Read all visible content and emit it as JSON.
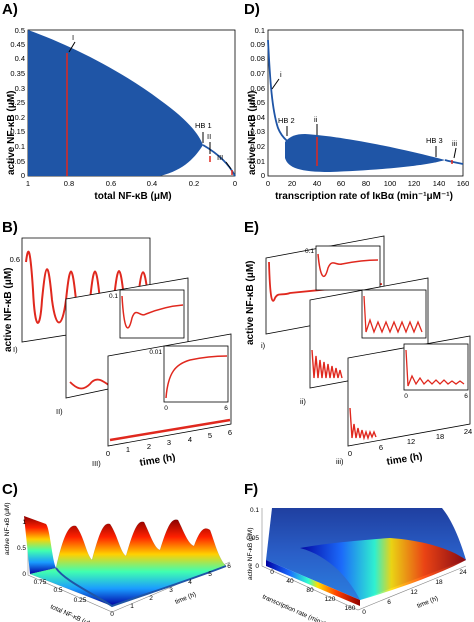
{
  "panels": {
    "A": {
      "letter": "A)",
      "xlabel": "total NF-κB (μM)",
      "ylabel": "active NF-κB (μM)",
      "xticks": [
        "1",
        "0.8",
        "0.6",
        "0.4",
        "0.2",
        "0"
      ],
      "yticks": [
        "0",
        "0.05",
        "0.1",
        "0.15",
        "0.2",
        "0.25",
        "0.3",
        "0.35",
        "0.4",
        "0.45",
        "0.5"
      ],
      "annotations": [
        "I",
        "HB 1",
        "II",
        "III"
      ]
    },
    "D": {
      "letter": "D)",
      "xlabel": "transcription rate of IκBα (min⁻¹μM⁻¹)",
      "ylabel": "active NF-κB (μM)",
      "xticks": [
        "0",
        "20",
        "40",
        "60",
        "80",
        "100",
        "120",
        "140",
        "160"
      ],
      "yticks": [
        "0",
        "0.01",
        "0.02",
        "0.03",
        "0.04",
        "0.05",
        "0.06",
        "0.07",
        "0.08",
        "0.09",
        "0.1"
      ],
      "annotations": [
        "i",
        "HB 2",
        "ii",
        "HB 3",
        "iii"
      ]
    },
    "B": {
      "letter": "B)",
      "ylabel": "active NF-κB (μM)",
      "sub_labels": [
        "I)",
        "II)",
        "III)"
      ],
      "ytick_top": "0.6",
      "inset_ticks": [
        "0.1",
        "0.01"
      ],
      "xticks": [
        "0",
        "1",
        "2",
        "3",
        "4",
        "5",
        "6"
      ],
      "inset_xticks": [
        "0",
        "6"
      ],
      "xlabel": "time (h)"
    },
    "E": {
      "letter": "E)",
      "ylabel": "active NF-κB (μM)",
      "sub_labels": [
        "i)",
        "ii)",
        "iii)"
      ],
      "inset_ticks": [
        "0.1"
      ],
      "xticks": [
        "0",
        "6",
        "12",
        "18",
        "24"
      ],
      "inset_xticks": [
        "0",
        "6"
      ],
      "xlabel": "time (h)"
    },
    "C": {
      "letter": "C)",
      "zlabel": "active NF-κB (μM)",
      "ylabel": "total NF-κB (μM)",
      "xlabel": "time (h)",
      "zticks": [
        "0",
        "0.5",
        "1"
      ],
      "yticks": [
        "0.75",
        "0.5",
        "0.25"
      ],
      "xticks": [
        "0",
        "1",
        "2",
        "3",
        "4",
        "5",
        "6"
      ]
    },
    "F": {
      "letter": "F)",
      "zlabel": "active NF-κB (μM)",
      "ylabel": "transcription rate (min⁻¹μM⁻¹)",
      "xlabel": "time (h)",
      "zticks": [
        "0",
        "0.05",
        "0.1"
      ],
      "yticks": [
        "0",
        "40",
        "80",
        "120",
        "160"
      ],
      "xticks": [
        "0",
        "6",
        "12",
        "18",
        "24"
      ]
    }
  },
  "colors": {
    "fill": "#1f55a6",
    "trace": "#e0281e",
    "axis": "#000000"
  }
}
